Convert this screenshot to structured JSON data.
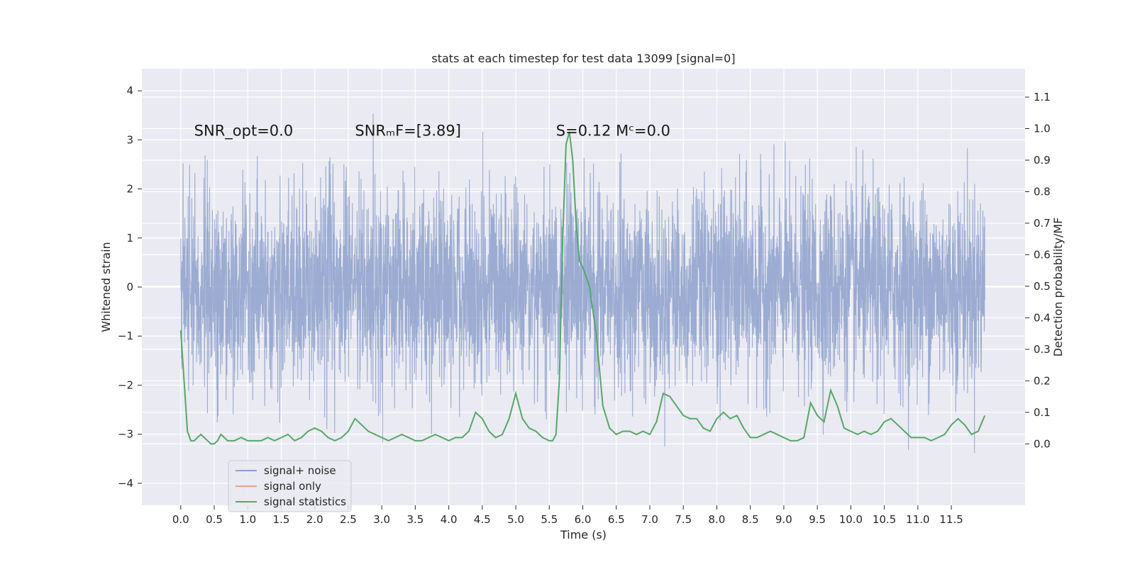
{
  "chart_data": {
    "type": "line",
    "title": "stats at each timestep for test data 13099 [signal=0]",
    "xlabel": "Time (s)",
    "ylabel": "Whitened strain",
    "ylabel_right": "Detection probability/MF",
    "xlim": [
      -0.58,
      12.6
    ],
    "ylim": [
      -4.45,
      4.45
    ],
    "ylim_right": [
      -0.195,
      1.19
    ],
    "x_ticks": [
      0.0,
      0.5,
      1.0,
      1.5,
      2.0,
      2.5,
      3.0,
      3.5,
      4.0,
      4.5,
      5.0,
      5.5,
      6.0,
      6.5,
      7.0,
      7.5,
      8.0,
      8.5,
      9.0,
      9.5,
      10.0,
      10.5,
      11.0,
      11.5
    ],
    "x_tick_labels": [
      "0.0",
      "0.5",
      "1.0",
      "1.5",
      "2.0",
      "2.5",
      "3.0",
      "3.5",
      "4.0",
      "4.5",
      "5.0",
      "5.5",
      "6.0",
      "6.5",
      "7.0",
      "7.5",
      "8.0",
      "8.5",
      "9.0",
      "9.5",
      "10.0",
      "10.5",
      "11.0",
      "11.5"
    ],
    "y_ticks": [
      -4,
      -3,
      -2,
      -1,
      0,
      1,
      2,
      3,
      4
    ],
    "y_tick_labels": [
      "−4",
      "−3",
      "−2",
      "−1",
      "0",
      "1",
      "2",
      "3",
      "4"
    ],
    "y_ticks_right": [
      0.0,
      0.1,
      0.2,
      0.3,
      0.4,
      0.5,
      0.6,
      0.7,
      0.8,
      0.9,
      1.0,
      1.1
    ],
    "y_tick_labels_right": [
      "0.0",
      "0.1",
      "0.2",
      "0.3",
      "0.4",
      "0.5",
      "0.6",
      "0.7",
      "0.8",
      "0.9",
      "1.0",
      "1.1"
    ],
    "grid": true,
    "legend_position": "lower-left",
    "annotations": [
      {
        "text": "SNR_opt=0.0",
        "x": 0.2,
        "y": 3.2
      },
      {
        "text": "SNRₘF=[3.89]",
        "x": 2.6,
        "y": 3.2
      },
      {
        "text": "S=0.12   Mᶜ=0.0",
        "x": 5.6,
        "y": 3.2
      }
    ],
    "series": [
      {
        "name": "signal+ noise",
        "color": "#8da0cb",
        "kind": "noise-band",
        "x_range": [
          0.0,
          12.0
        ],
        "samples": 4096,
        "spread_sd": 1.0
      },
      {
        "name": "signal only",
        "color": "#e9a185",
        "x": [],
        "y": []
      },
      {
        "name": "signal statistics",
        "color": "#55a868",
        "axis": "right",
        "x": [
          0.0,
          0.05,
          0.1,
          0.15,
          0.2,
          0.25,
          0.3,
          0.35,
          0.4,
          0.45,
          0.5,
          0.55,
          0.6,
          0.65,
          0.7,
          0.75,
          0.8,
          0.9,
          1.0,
          1.1,
          1.2,
          1.3,
          1.4,
          1.5,
          1.6,
          1.7,
          1.8,
          1.9,
          2.0,
          2.1,
          2.2,
          2.3,
          2.4,
          2.5,
          2.6,
          2.7,
          2.8,
          2.9,
          3.0,
          3.1,
          3.2,
          3.3,
          3.4,
          3.5,
          3.6,
          3.7,
          3.8,
          3.9,
          4.0,
          4.1,
          4.2,
          4.3,
          4.4,
          4.5,
          4.6,
          4.7,
          4.8,
          4.9,
          5.0,
          5.1,
          5.2,
          5.3,
          5.4,
          5.5,
          5.55,
          5.6,
          5.65,
          5.7,
          5.75,
          5.8,
          5.85,
          5.9,
          5.95,
          6.0,
          6.1,
          6.2,
          6.3,
          6.4,
          6.5,
          6.6,
          6.7,
          6.8,
          6.9,
          7.0,
          7.1,
          7.2,
          7.3,
          7.4,
          7.5,
          7.6,
          7.7,
          7.8,
          7.9,
          8.0,
          8.1,
          8.2,
          8.3,
          8.4,
          8.5,
          8.6,
          8.7,
          8.8,
          8.9,
          9.0,
          9.1,
          9.2,
          9.3,
          9.4,
          9.5,
          9.6,
          9.7,
          9.8,
          9.9,
          10.0,
          10.1,
          10.2,
          10.3,
          10.4,
          10.5,
          10.6,
          10.7,
          10.8,
          10.9,
          11.0,
          11.1,
          11.2,
          11.3,
          11.4,
          11.5,
          11.6,
          11.7,
          11.8,
          11.9,
          12.0
        ],
        "y": [
          0.36,
          0.2,
          0.04,
          0.01,
          0.01,
          0.02,
          0.03,
          0.02,
          0.01,
          0.0,
          0.0,
          0.01,
          0.03,
          0.02,
          0.01,
          0.01,
          0.01,
          0.02,
          0.01,
          0.01,
          0.01,
          0.02,
          0.01,
          0.02,
          0.03,
          0.01,
          0.02,
          0.04,
          0.05,
          0.04,
          0.02,
          0.01,
          0.02,
          0.04,
          0.08,
          0.06,
          0.04,
          0.03,
          0.02,
          0.01,
          0.02,
          0.03,
          0.02,
          0.01,
          0.01,
          0.02,
          0.03,
          0.02,
          0.01,
          0.02,
          0.02,
          0.04,
          0.1,
          0.08,
          0.04,
          0.02,
          0.03,
          0.08,
          0.16,
          0.08,
          0.05,
          0.04,
          0.02,
          0.01,
          0.01,
          0.03,
          0.2,
          0.65,
          0.95,
          0.99,
          0.9,
          0.7,
          0.58,
          0.56,
          0.5,
          0.35,
          0.12,
          0.05,
          0.03,
          0.04,
          0.04,
          0.03,
          0.04,
          0.03,
          0.07,
          0.16,
          0.15,
          0.12,
          0.09,
          0.08,
          0.08,
          0.05,
          0.04,
          0.08,
          0.1,
          0.08,
          0.09,
          0.05,
          0.02,
          0.02,
          0.03,
          0.04,
          0.03,
          0.02,
          0.01,
          0.01,
          0.02,
          0.13,
          0.09,
          0.07,
          0.17,
          0.12,
          0.05,
          0.04,
          0.03,
          0.04,
          0.03,
          0.04,
          0.07,
          0.08,
          0.06,
          0.04,
          0.02,
          0.02,
          0.02,
          0.01,
          0.02,
          0.03,
          0.06,
          0.08,
          0.06,
          0.03,
          0.04,
          0.09
        ]
      }
    ]
  }
}
